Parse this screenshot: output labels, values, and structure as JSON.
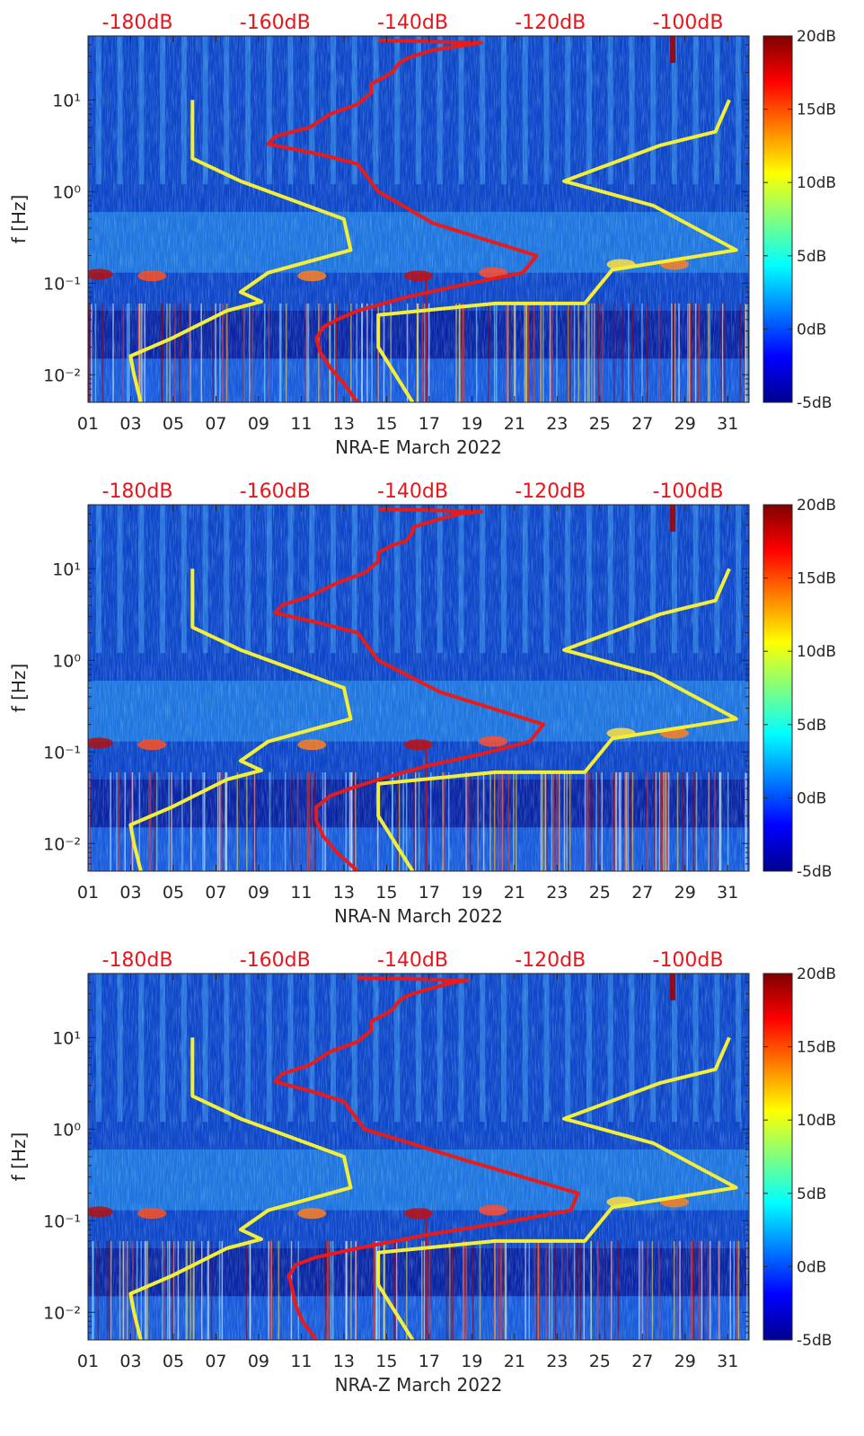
{
  "chart_data": [
    {
      "type": "heatmap",
      "xlabel": "NRA-E March 2022",
      "ylabel": "f [Hz]",
      "x_ticks": [
        "01",
        "03",
        "05",
        "07",
        "09",
        "11",
        "13",
        "15",
        "17",
        "19",
        "21",
        "23",
        "25",
        "27",
        "29",
        "31"
      ],
      "x_range_days": [
        1,
        32
      ],
      "y_scale": "log",
      "y_range_hz": [
        0.005,
        50
      ],
      "y_tick_labels": [
        {
          "value": 10,
          "label": "10¹"
        },
        {
          "value": 1,
          "label": "10⁰"
        },
        {
          "value": 0.1,
          "label": "10⁻¹"
        },
        {
          "value": 0.01,
          "label": "10⁻²"
        }
      ],
      "top_axis_labels": [
        "-180dB",
        "-160dB",
        "-140dB",
        "-120dB",
        "-100dB"
      ],
      "top_axis_db": [
        -180,
        -160,
        -140,
        -120,
        -100
      ],
      "colorbar": {
        "labels": [
          "20dB",
          "15dB",
          "10dB",
          "5dB",
          "0dB",
          "-5dB"
        ],
        "range_db": [
          -5,
          20
        ]
      },
      "red_curve": {
        "db": [
          -148,
          -150,
          -152,
          -153.5,
          -154,
          -153,
          -151,
          -148,
          -141,
          -133,
          -124,
          -122,
          -137,
          -145,
          -148,
          -153,
          -161,
          -160,
          -155,
          -152,
          -148,
          -146,
          -146,
          -144,
          -143,
          -142,
          -141,
          -140,
          -137,
          -132,
          -130,
          -145
        ],
        "f": [
          0.005,
          0.008,
          0.012,
          0.018,
          0.025,
          0.033,
          0.04,
          0.05,
          0.07,
          0.095,
          0.13,
          0.2,
          0.45,
          1.0,
          2.0,
          2.5,
          3.3,
          4.0,
          5.0,
          7.0,
          9.0,
          12.0,
          15.0,
          18.0,
          20.0,
          25.0,
          28.0,
          30.0,
          35.0,
          40.0,
          42.0,
          45.0
        ]
      },
      "yellow_low_curve": {
        "db": [
          -179.5,
          -180.5,
          -181,
          -175,
          -167,
          -162,
          -165,
          -161,
          -149,
          -150,
          -165,
          -172,
          -172,
          -172,
          -172
        ],
        "f": [
          0.005,
          0.01,
          0.016,
          0.025,
          0.05,
          0.063,
          0.08,
          0.13,
          0.23,
          0.5,
          1.3,
          2.3,
          4.0,
          8.0,
          10.0
        ]
      },
      "yellow_high_curve": {
        "db": [
          -140,
          -145,
          -145,
          -128,
          -115,
          -111,
          -93,
          -105,
          -118,
          -104,
          -96,
          -94
        ],
        "f": [
          0.005,
          0.02,
          0.045,
          0.06,
          0.06,
          0.14,
          0.23,
          0.7,
          1.3,
          3.2,
          4.5,
          10.0
        ]
      }
    },
    {
      "type": "heatmap",
      "xlabel": "NRA-N March 2022",
      "ylabel": "f [Hz]",
      "x_ticks": [
        "01",
        "03",
        "05",
        "07",
        "09",
        "11",
        "13",
        "15",
        "17",
        "19",
        "21",
        "23",
        "25",
        "27",
        "29",
        "31"
      ],
      "x_range_days": [
        1,
        32
      ],
      "y_scale": "log",
      "y_range_hz": [
        0.005,
        50
      ],
      "y_tick_labels": [
        {
          "value": 10,
          "label": "10¹"
        },
        {
          "value": 1,
          "label": "10⁰"
        },
        {
          "value": 0.1,
          "label": "10⁻¹"
        },
        {
          "value": 0.01,
          "label": "10⁻²"
        }
      ],
      "top_axis_labels": [
        "-180dB",
        "-160dB",
        "-140dB",
        "-120dB",
        "-100dB"
      ],
      "top_axis_db": [
        -180,
        -160,
        -140,
        -120,
        -100
      ],
      "colorbar": {
        "labels": [
          "20dB",
          "15dB",
          "10dB",
          "5dB",
          "0dB",
          "-5dB"
        ],
        "range_db": [
          -5,
          20
        ]
      },
      "red_curve": {
        "db": [
          -148,
          -151,
          -153,
          -154,
          -154,
          -152,
          -149,
          -145,
          -138,
          -130,
          -123,
          -121,
          -136,
          -145,
          -148,
          -153,
          -160,
          -159,
          -155,
          -151,
          -147,
          -145,
          -145,
          -143,
          -141,
          -140,
          -140,
          -139,
          -136,
          -133,
          -130,
          -145
        ],
        "f": [
          0.005,
          0.008,
          0.012,
          0.018,
          0.025,
          0.033,
          0.04,
          0.05,
          0.07,
          0.095,
          0.13,
          0.2,
          0.45,
          1.0,
          2.0,
          2.5,
          3.3,
          4.0,
          5.0,
          7.0,
          9.0,
          12.0,
          15.0,
          18.0,
          20.0,
          25.0,
          28.0,
          30.0,
          35.0,
          40.0,
          42.0,
          45.0
        ]
      },
      "yellow_low_curve": {
        "db": [
          -179.5,
          -180.5,
          -181,
          -175,
          -167,
          -162,
          -165,
          -161,
          -149,
          -150,
          -165,
          -172,
          -172,
          -172,
          -172
        ],
        "f": [
          0.005,
          0.01,
          0.016,
          0.025,
          0.05,
          0.063,
          0.08,
          0.13,
          0.23,
          0.5,
          1.3,
          2.3,
          4.0,
          8.0,
          10.0
        ]
      },
      "yellow_high_curve": {
        "db": [
          -140,
          -145,
          -145,
          -128,
          -115,
          -111,
          -93,
          -105,
          -118,
          -104,
          -96,
          -94
        ],
        "f": [
          0.005,
          0.02,
          0.045,
          0.06,
          0.06,
          0.14,
          0.23,
          0.7,
          1.3,
          3.2,
          4.5,
          10.0
        ]
      }
    },
    {
      "type": "heatmap",
      "xlabel": "NRA-Z March 2022",
      "ylabel": "f [Hz]",
      "x_ticks": [
        "01",
        "03",
        "05",
        "07",
        "09",
        "11",
        "13",
        "15",
        "17",
        "19",
        "21",
        "23",
        "25",
        "27",
        "29",
        "31"
      ],
      "x_range_days": [
        1,
        32
      ],
      "y_scale": "log",
      "y_range_hz": [
        0.005,
        50
      ],
      "y_tick_labels": [
        {
          "value": 10,
          "label": "10¹"
        },
        {
          "value": 1,
          "label": "10⁰"
        },
        {
          "value": 0.1,
          "label": "10⁻¹"
        },
        {
          "value": 0.01,
          "label": "10⁻²"
        }
      ],
      "top_axis_labels": [
        "-180dB",
        "-160dB",
        "-140dB",
        "-120dB",
        "-100dB"
      ],
      "top_axis_db": [
        -180,
        -160,
        -140,
        -120,
        -100
      ],
      "colorbar": {
        "labels": [
          "20dB",
          "15dB",
          "10dB",
          "5dB",
          "0dB",
          "-5dB"
        ],
        "range_db": [
          -5,
          20
        ]
      },
      "red_curve": {
        "db": [
          -154,
          -156,
          -157,
          -157.5,
          -158,
          -157,
          -154,
          -148,
          -138,
          -127,
          -117,
          -116,
          -132,
          -147,
          -150,
          -154,
          -160,
          -159,
          -155,
          -152,
          -148,
          -146,
          -146,
          -144,
          -143,
          -142,
          -141,
          -140,
          -137,
          -134,
          -132,
          -148
        ],
        "f": [
          0.005,
          0.008,
          0.012,
          0.018,
          0.025,
          0.033,
          0.04,
          0.05,
          0.07,
          0.095,
          0.13,
          0.2,
          0.45,
          1.0,
          2.0,
          2.5,
          3.3,
          4.0,
          5.0,
          7.0,
          9.0,
          12.0,
          15.0,
          18.0,
          20.0,
          25.0,
          28.0,
          30.0,
          35.0,
          40.0,
          42.0,
          45.0
        ]
      },
      "yellow_low_curve": {
        "db": [
          -179.5,
          -180.5,
          -181,
          -175,
          -167,
          -162,
          -165,
          -161,
          -149,
          -150,
          -165,
          -172,
          -172,
          -172,
          -172
        ],
        "f": [
          0.005,
          0.01,
          0.016,
          0.025,
          0.05,
          0.063,
          0.08,
          0.13,
          0.23,
          0.5,
          1.3,
          2.3,
          4.0,
          8.0,
          10.0
        ]
      },
      "yellow_high_curve": {
        "db": [
          -140,
          -145,
          -145,
          -128,
          -115,
          -111,
          -93,
          -105,
          -118,
          -104,
          -96,
          -94
        ],
        "f": [
          0.005,
          0.02,
          0.045,
          0.06,
          0.06,
          0.14,
          0.23,
          0.7,
          1.3,
          3.2,
          4.5,
          10.0
        ]
      }
    }
  ]
}
